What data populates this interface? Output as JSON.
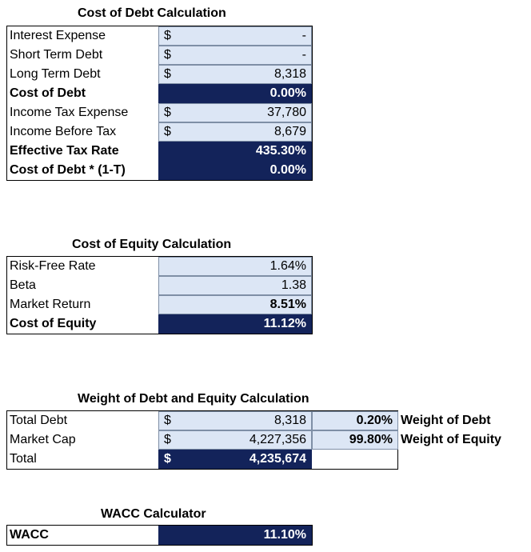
{
  "debt": {
    "title": "Cost of Debt Calculation",
    "rows": [
      {
        "label": "Interest Expense",
        "cur": "$",
        "value": "-",
        "bold": false,
        "dark": false
      },
      {
        "label": "Short Term Debt",
        "cur": "$",
        "value": "-",
        "bold": false,
        "dark": false
      },
      {
        "label": "Long Term Debt",
        "cur": "$",
        "value": "8,318",
        "bold": false,
        "dark": false
      },
      {
        "label": "Cost of Debt",
        "cur": "",
        "value": "0.00%",
        "bold": true,
        "dark": true
      },
      {
        "label": "Income Tax Expense",
        "cur": "$",
        "value": "37,780",
        "bold": false,
        "dark": false
      },
      {
        "label": "Income Before Tax",
        "cur": "$",
        "value": "8,679",
        "bold": false,
        "dark": false
      },
      {
        "label": "Effective Tax Rate",
        "cur": "",
        "value": "435.30%",
        "bold": true,
        "dark": true
      },
      {
        "label": "Cost of Debt * (1-T)",
        "cur": "",
        "value": "0.00%",
        "bold": true,
        "dark": true
      }
    ]
  },
  "equity": {
    "title": "Cost of Equity Calculation",
    "rows": [
      {
        "label": "Risk-Free Rate",
        "value": "1.64%",
        "bold": false,
        "dark": false,
        "boldval": false
      },
      {
        "label": "Beta",
        "value": "1.38",
        "bold": false,
        "dark": false,
        "boldval": false
      },
      {
        "label": "Market Return",
        "value": "8.51%",
        "bold": false,
        "dark": false,
        "boldval": true
      },
      {
        "label": "Cost of Equity",
        "value": "11.12%",
        "bold": true,
        "dark": true,
        "boldval": true
      }
    ]
  },
  "weights": {
    "title": "Weight of Debt and Equity Calculation",
    "rows": [
      {
        "label": "Total Debt",
        "cur": "$",
        "value": "8,318",
        "pct": "0.20%",
        "side": "Weight of Debt",
        "dark": false
      },
      {
        "label": "Market Cap",
        "cur": "$",
        "value": "4,227,356",
        "pct": "99.80%",
        "side": "Weight of Equity",
        "dark": false
      },
      {
        "label": "Total",
        "cur": "$",
        "value": "4,235,674",
        "pct": "",
        "side": "",
        "dark": true
      }
    ]
  },
  "wacc": {
    "title": "WACC Calculator",
    "label": "WACC",
    "value": "11.10%"
  }
}
